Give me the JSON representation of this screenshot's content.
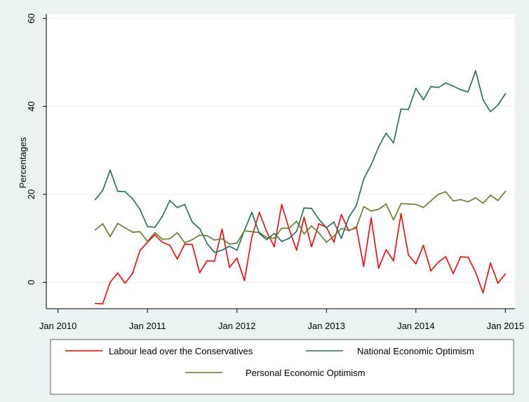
{
  "chart_data": {
    "type": "line",
    "title": "",
    "xlabel": "",
    "ylabel": "Percentages",
    "xlim": [
      "2009-12",
      "2015-02"
    ],
    "ylim": [
      -6,
      61
    ],
    "x_ticks": [
      "Jan 2010",
      "Jan 2011",
      "Jan 2012",
      "Jan 2013",
      "Jan 2014",
      "Jan 2015"
    ],
    "y_ticks": [
      "0",
      "20",
      "40",
      "60"
    ],
    "grid": "horizontal",
    "legend_position": "bottom",
    "x": [
      "2010-06",
      "2010-07",
      "2010-08",
      "2010-09",
      "2010-10",
      "2010-11",
      "2010-12",
      "2011-01",
      "2011-02",
      "2011-03",
      "2011-04",
      "2011-05",
      "2011-06",
      "2011-07",
      "2011-08",
      "2011-09",
      "2011-10",
      "2011-11",
      "2011-12",
      "2012-01",
      "2012-02",
      "2012-03",
      "2012-04",
      "2012-05",
      "2012-06",
      "2012-07",
      "2012-08",
      "2012-09",
      "2012-10",
      "2012-11",
      "2012-12",
      "2013-01",
      "2013-02",
      "2013-03",
      "2013-04",
      "2013-05",
      "2013-06",
      "2013-07",
      "2013-08",
      "2013-09",
      "2013-10",
      "2013-11",
      "2013-12",
      "2014-01",
      "2014-02",
      "2014-03",
      "2014-04",
      "2014-05",
      "2014-06",
      "2014-07",
      "2014-08",
      "2014-09",
      "2014-10",
      "2014-11",
      "2014-12",
      "2015-01"
    ],
    "series": [
      {
        "name": "Labour lead over the Conservatives",
        "color": "#ff0000",
        "values": [
          -4.8,
          -4.9,
          0,
          2.1,
          -0.2,
          2,
          7.2,
          9.1,
          10.8,
          9.1,
          8.4,
          5.3,
          8.7,
          8.6,
          2.2,
          4.9,
          4.8,
          12.1,
          3.4,
          5.5,
          0.4,
          10.3,
          15.9,
          11.5,
          8.1,
          17.7,
          12.1,
          7.3,
          14.8,
          8.1,
          13.3,
          12.5,
          9.1,
          15.4,
          11.7,
          12.6,
          3.6,
          14.6,
          3.2,
          7.4,
          4.9,
          15.6,
          6.2,
          4.2,
          8.4,
          2.6,
          4.6,
          5.8,
          2,
          5.8,
          5.7,
          2.3,
          -2.4,
          4.4,
          -0.2,
          1.9
        ]
      },
      {
        "name": "National Economic Optimism",
        "color": "#1e6b5e",
        "values": [
          18.8,
          20.9,
          25.5,
          20.7,
          20.6,
          19,
          16.6,
          12.7,
          12.5,
          15,
          18.6,
          17,
          17.7,
          13.7,
          12.2,
          8.8,
          6.8,
          7.3,
          8.2,
          7.3,
          11.8,
          15.9,
          11.1,
          9.7,
          11.1,
          9.3,
          10,
          11.6,
          16.9,
          16.8,
          14.3,
          12.4,
          13.7,
          10,
          14.8,
          17.4,
          23.5,
          26.7,
          30.8,
          33.9,
          31.7,
          39.4,
          39.3,
          44.1,
          41.5,
          44.5,
          44.3,
          45.3,
          44.6,
          43.8,
          43.3,
          48.1,
          41.5,
          38.8,
          40.3,
          42.9
        ]
      },
      {
        "name": "Personal Economic Optimism",
        "color": "#5a7e24",
        "values": [
          11.9,
          13.3,
          10.4,
          13.4,
          12.4,
          11.4,
          11.5,
          9.3,
          11.3,
          9.8,
          9.9,
          11.3,
          9,
          9.7,
          10.7,
          10.6,
          9.6,
          9.9,
          8.7,
          8.9,
          11.7,
          11.5,
          11.3,
          10.2,
          10,
          12.3,
          12.3,
          13.9,
          11,
          12.8,
          11.2,
          9.1,
          10.5,
          12.2,
          11.8,
          12.4,
          17.2,
          16.2,
          16.6,
          17.8,
          14.2,
          17.9,
          17.8,
          17.7,
          17,
          18.5,
          20,
          20.6,
          18.5,
          18.8,
          18.3,
          19.2,
          18,
          19.8,
          18.6,
          20.7
        ]
      }
    ]
  }
}
